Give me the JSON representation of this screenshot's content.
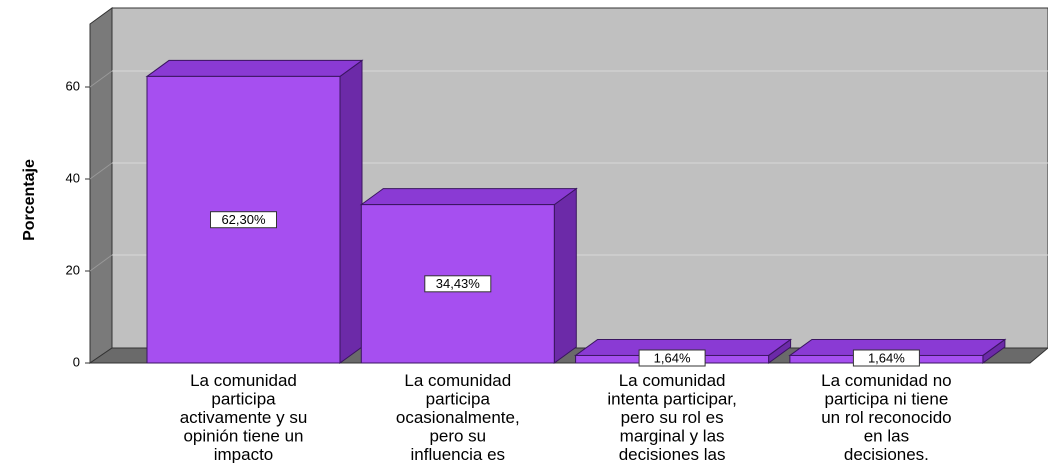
{
  "chart_data": {
    "type": "bar3d",
    "ylabel": "Porcentaje",
    "categories": [
      "La comunidad\nparticipa\nactivamente y su\nopinión tiene un\nimpacto",
      "La comunidad\nparticipa\nocasionalmente,\npero su\ninfluencia es",
      "La comunidad\nintenta participar,\npero su rol es\nmarginal y las\ndecisiones las",
      "La comunidad no\nparticipa ni tiene\nun rol reconocido\nen las\ndecisiones."
    ],
    "values": [
      62.3,
      34.43,
      1.64,
      1.64
    ],
    "value_labels": [
      "62,30%",
      "34,43%",
      "1,64%",
      "1,64%"
    ],
    "color": "#a64ff0",
    "ylim": [
      0,
      75
    ],
    "yticks": [
      0,
      20,
      40,
      60
    ],
    "grid": true
  }
}
